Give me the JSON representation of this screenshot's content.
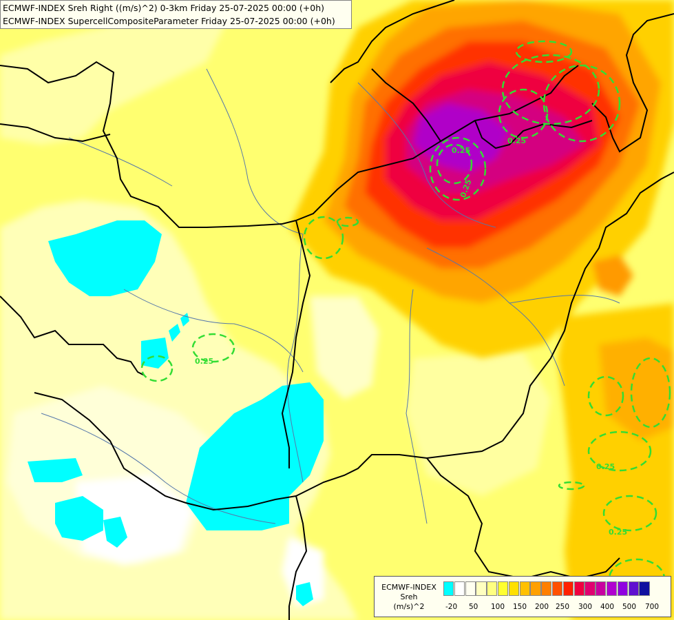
{
  "header": {
    "line1": "ECMWF-INDEX Sreh Right ((m/s)^2) 0-3km Friday 25-07-2025 00:00 (+0h)",
    "line2": "ECMWF-INDEX SupercellCompositeParameter Friday 25-07-2025 00:00 (+0h)"
  },
  "legend": {
    "title": "ECMWF-INDEX",
    "variable": "Sreh",
    "unit": "(m/s)^2",
    "colors": [
      "#00ffff",
      "#ffffff",
      "#fffff0",
      "#ffffc0",
      "#ffff80",
      "#ffff30",
      "#ffe000",
      "#ffc000",
      "#ffa000",
      "#ff7f00",
      "#ff5000",
      "#ff2000",
      "#ef0040",
      "#e00070",
      "#c800a0",
      "#b000d0",
      "#9000e0",
      "#6010d0",
      "#1010a0"
    ],
    "ticks": [
      "-20",
      "50",
      "100",
      "150",
      "200",
      "250",
      "300",
      "400",
      "500",
      "700"
    ]
  },
  "contour_labels": [
    "0.25",
    "0.25",
    "0.25",
    "0.25",
    "0.25",
    "0.25"
  ],
  "colors": {
    "scp_contour": "#33dd33",
    "border": "#000000",
    "river": "#5577aa"
  }
}
